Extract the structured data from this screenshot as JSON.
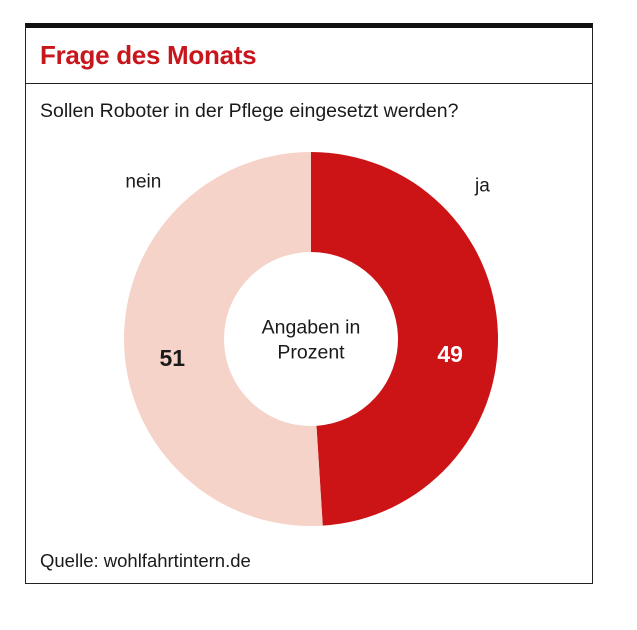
{
  "header": {
    "title": "Frage des Monats"
  },
  "question": "Sollen Roboter in der Pflege eingesetzt werden?",
  "source": "Quelle: wohlfahrtintern.de",
  "colors": {
    "accent": "#c8161d",
    "ja": "#cc1417",
    "nein": "#f5d3c8"
  },
  "chart_data": {
    "type": "pie",
    "donut": true,
    "center_label": [
      "Angaben in",
      "Prozent"
    ],
    "slices": [
      {
        "label": "ja",
        "value": 49,
        "color": "#cc1417",
        "value_color": "#ffffff"
      },
      {
        "label": "nein",
        "value": 51,
        "color": "#f5d3c8",
        "value_color": "#1a1a1a"
      }
    ]
  }
}
